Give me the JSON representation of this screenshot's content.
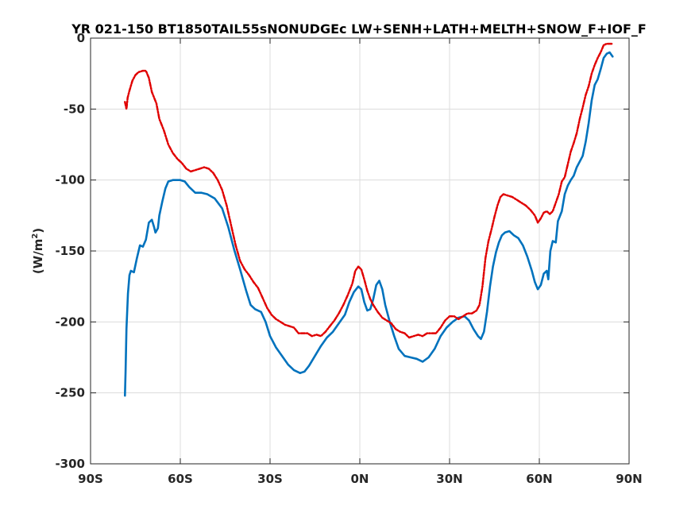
{
  "chart_data": {
    "type": "line",
    "title": "YR 021-150 BT1850TAIL55sNONUDGEc LW+SENH+LATH+MELTH+SNOW_F+IOF_F",
    "xlabel": "",
    "ylabel": "(W/m",
    "ylabel_sup": "2",
    "ylabel_close": ")",
    "xlim": [
      -90,
      90
    ],
    "ylim": [
      -300,
      0
    ],
    "grid": true,
    "xticks": [
      -90,
      -60,
      -30,
      0,
      30,
      60,
      90
    ],
    "xtick_labels": [
      "90S",
      "60S",
      "30S",
      "0N",
      "30N",
      "60N",
      "90N"
    ],
    "yticks": [
      0,
      -50,
      -100,
      -150,
      -200,
      -250,
      -300
    ],
    "ytick_labels": [
      "0",
      "-50",
      "-100",
      "-150",
      "-200",
      "-250",
      "-300"
    ],
    "series": [
      {
        "color": "#0072BD",
        "style": "solid",
        "points": [
          [
            -78.5,
            -252
          ],
          [
            -78.3,
            -235
          ],
          [
            -78.0,
            -205
          ],
          [
            -77.5,
            -180
          ],
          [
            -77.0,
            -167
          ],
          [
            -76.5,
            -164
          ],
          [
            -75.5,
            -165
          ],
          [
            -74.5,
            -155
          ],
          [
            -73.5,
            -146
          ],
          [
            -72.5,
            -147
          ],
          [
            -71.5,
            -142
          ],
          [
            -70.5,
            -130
          ],
          [
            -69.5,
            -128
          ],
          [
            -68.8,
            -133
          ],
          [
            -68.3,
            -137
          ],
          [
            -67.5,
            -134
          ],
          [
            -67.0,
            -125
          ],
          [
            -66.0,
            -115
          ],
          [
            -65.0,
            -106
          ],
          [
            -64.0,
            -101
          ],
          [
            -62.5,
            -100
          ],
          [
            -60.0,
            -100
          ],
          [
            -58.5,
            -101
          ],
          [
            -57.0,
            -105
          ],
          [
            -55.0,
            -109
          ],
          [
            -53.0,
            -109
          ],
          [
            -51.0,
            -110
          ],
          [
            -48.5,
            -113
          ],
          [
            -46.0,
            -120
          ],
          [
            -44.0,
            -133
          ],
          [
            -42.0,
            -149
          ],
          [
            -40.0,
            -163
          ],
          [
            -38.0,
            -178
          ],
          [
            -36.5,
            -188
          ],
          [
            -35.0,
            -191
          ],
          [
            -33.0,
            -193
          ],
          [
            -31.5,
            -200
          ],
          [
            -30.0,
            -210
          ],
          [
            -28.0,
            -218
          ],
          [
            -26.0,
            -224
          ],
          [
            -24.0,
            -230
          ],
          [
            -22.0,
            -234
          ],
          [
            -20.0,
            -236
          ],
          [
            -18.5,
            -235
          ],
          [
            -17.0,
            -231
          ],
          [
            -15.0,
            -224
          ],
          [
            -13.0,
            -217
          ],
          [
            -11.0,
            -211
          ],
          [
            -9.0,
            -207
          ],
          [
            -7.0,
            -201
          ],
          [
            -5.0,
            -195
          ],
          [
            -3.5,
            -186
          ],
          [
            -2.0,
            -179
          ],
          [
            -0.5,
            -175
          ],
          [
            0.5,
            -177
          ],
          [
            1.5,
            -186
          ],
          [
            2.5,
            -192
          ],
          [
            3.5,
            -191
          ],
          [
            4.5,
            -184
          ],
          [
            5.5,
            -174
          ],
          [
            6.5,
            -171
          ],
          [
            7.5,
            -177
          ],
          [
            8.5,
            -188
          ],
          [
            10.0,
            -200
          ],
          [
            11.5,
            -210
          ],
          [
            13.0,
            -219
          ],
          [
            15.0,
            -224
          ],
          [
            17.0,
            -225
          ],
          [
            19.0,
            -226
          ],
          [
            21.0,
            -228
          ],
          [
            23.0,
            -225
          ],
          [
            25.0,
            -219
          ],
          [
            27.0,
            -210
          ],
          [
            29.0,
            -204
          ],
          [
            31.0,
            -200
          ],
          [
            33.0,
            -197
          ],
          [
            35.0,
            -196
          ],
          [
            36.5,
            -199
          ],
          [
            38.0,
            -205
          ],
          [
            39.5,
            -210
          ],
          [
            40.5,
            -212
          ],
          [
            41.5,
            -207
          ],
          [
            42.5,
            -193
          ],
          [
            43.5,
            -175
          ],
          [
            44.5,
            -161
          ],
          [
            45.5,
            -151
          ],
          [
            46.5,
            -144
          ],
          [
            47.5,
            -139
          ],
          [
            48.5,
            -137
          ],
          [
            50.0,
            -136
          ],
          [
            51.5,
            -139
          ],
          [
            53.0,
            -141
          ],
          [
            54.5,
            -146
          ],
          [
            56.0,
            -154
          ],
          [
            57.5,
            -164
          ],
          [
            58.5,
            -172
          ],
          [
            59.5,
            -177
          ],
          [
            60.5,
            -174
          ],
          [
            61.5,
            -166
          ],
          [
            62.5,
            -164
          ],
          [
            63.0,
            -170
          ],
          [
            63.7,
            -150
          ],
          [
            64.5,
            -143
          ],
          [
            65.5,
            -144
          ],
          [
            66.2,
            -129
          ],
          [
            67.5,
            -122
          ],
          [
            68.5,
            -110
          ],
          [
            69.5,
            -104
          ],
          [
            70.5,
            -100
          ],
          [
            71.5,
            -97
          ],
          [
            72.5,
            -91
          ],
          [
            73.5,
            -87
          ],
          [
            74.5,
            -83
          ],
          [
            75.5,
            -73
          ],
          [
            76.5,
            -60
          ],
          [
            77.5,
            -44
          ],
          [
            78.5,
            -33
          ],
          [
            79.5,
            -29
          ],
          [
            80.5,
            -22
          ],
          [
            81.5,
            -14
          ],
          [
            82.5,
            -11
          ],
          [
            83.5,
            -10
          ],
          [
            84.5,
            -13
          ]
        ]
      },
      {
        "color": "#E00000",
        "style": "dashdot",
        "points": [
          [
            -78.5,
            -45
          ],
          [
            -78.0,
            -50
          ],
          [
            -77.6,
            -42
          ],
          [
            -77.0,
            -37
          ],
          [
            -76.0,
            -30
          ],
          [
            -75.0,
            -26
          ],
          [
            -74.0,
            -24
          ],
          [
            -72.5,
            -23
          ],
          [
            -71.5,
            -23
          ],
          [
            -70.5,
            -28
          ],
          [
            -69.5,
            -38
          ],
          [
            -68.0,
            -46
          ],
          [
            -67.0,
            -57
          ],
          [
            -65.5,
            -65
          ],
          [
            -64.0,
            -75
          ],
          [
            -62.5,
            -81
          ],
          [
            -61.0,
            -85
          ],
          [
            -59.5,
            -88
          ],
          [
            -58.0,
            -92
          ],
          [
            -56.5,
            -94
          ],
          [
            -55.0,
            -93
          ],
          [
            -53.5,
            -92
          ],
          [
            -52.0,
            -91
          ],
          [
            -50.5,
            -92
          ],
          [
            -49.0,
            -95
          ],
          [
            -47.5,
            -100
          ],
          [
            -46.0,
            -107
          ],
          [
            -44.5,
            -118
          ],
          [
            -43.0,
            -132
          ],
          [
            -41.5,
            -146
          ],
          [
            -40.0,
            -157
          ],
          [
            -38.5,
            -163
          ],
          [
            -37.0,
            -167
          ],
          [
            -35.5,
            -172
          ],
          [
            -34.0,
            -176
          ],
          [
            -32.5,
            -183
          ],
          [
            -31.0,
            -190
          ],
          [
            -29.5,
            -195
          ],
          [
            -28.0,
            -198
          ],
          [
            -26.5,
            -200
          ],
          [
            -25.0,
            -202
          ],
          [
            -23.5,
            -203
          ],
          [
            -22.0,
            -204
          ],
          [
            -20.5,
            -208
          ],
          [
            -19.0,
            -208
          ],
          [
            -17.5,
            -208
          ],
          [
            -16.0,
            -210
          ],
          [
            -14.5,
            -209
          ],
          [
            -13.0,
            -210
          ],
          [
            -11.5,
            -207
          ],
          [
            -10.0,
            -203
          ],
          [
            -8.5,
            -199
          ],
          [
            -7.0,
            -194
          ],
          [
            -5.5,
            -188
          ],
          [
            -4.0,
            -181
          ],
          [
            -2.5,
            -173
          ],
          [
            -1.5,
            -164
          ],
          [
            -0.5,
            -161
          ],
          [
            0.5,
            -163
          ],
          [
            1.5,
            -170
          ],
          [
            2.5,
            -178
          ],
          [
            3.5,
            -184
          ],
          [
            4.5,
            -188
          ],
          [
            6.0,
            -193
          ],
          [
            7.5,
            -197
          ],
          [
            9.0,
            -199
          ],
          [
            10.5,
            -201
          ],
          [
            12.0,
            -205
          ],
          [
            13.5,
            -207
          ],
          [
            15.0,
            -208
          ],
          [
            16.5,
            -211
          ],
          [
            18.0,
            -210
          ],
          [
            19.5,
            -209
          ],
          [
            21.0,
            -210
          ],
          [
            22.5,
            -208
          ],
          [
            24.0,
            -208
          ],
          [
            25.5,
            -208
          ],
          [
            27.0,
            -204
          ],
          [
            28.5,
            -199
          ],
          [
            30.0,
            -196
          ],
          [
            31.5,
            -196
          ],
          [
            33.0,
            -198
          ],
          [
            34.5,
            -196
          ],
          [
            36.0,
            -194
          ],
          [
            37.5,
            -194
          ],
          [
            39.0,
            -192
          ],
          [
            40.0,
            -188
          ],
          [
            41.0,
            -175
          ],
          [
            42.0,
            -155
          ],
          [
            43.0,
            -143
          ],
          [
            44.0,
            -135
          ],
          [
            45.0,
            -126
          ],
          [
            46.0,
            -118
          ],
          [
            47.0,
            -112
          ],
          [
            48.0,
            -110
          ],
          [
            49.5,
            -111
          ],
          [
            51.0,
            -112
          ],
          [
            52.5,
            -114
          ],
          [
            54.0,
            -116
          ],
          [
            55.5,
            -118
          ],
          [
            57.0,
            -121
          ],
          [
            58.5,
            -125
          ],
          [
            59.5,
            -130
          ],
          [
            60.5,
            -127
          ],
          [
            61.5,
            -123
          ],
          [
            62.5,
            -122
          ],
          [
            63.5,
            -124
          ],
          [
            64.5,
            -122
          ],
          [
            65.5,
            -116
          ],
          [
            66.5,
            -110
          ],
          [
            67.5,
            -101
          ],
          [
            68.5,
            -98
          ],
          [
            69.5,
            -89
          ],
          [
            70.5,
            -80
          ],
          [
            71.5,
            -74
          ],
          [
            72.5,
            -67
          ],
          [
            73.5,
            -57
          ],
          [
            74.5,
            -49
          ],
          [
            75.5,
            -40
          ],
          [
            76.5,
            -34
          ],
          [
            77.5,
            -25
          ],
          [
            78.5,
            -19
          ],
          [
            79.5,
            -14
          ],
          [
            80.5,
            -10
          ],
          [
            81.5,
            -5
          ],
          [
            82.5,
            -4
          ],
          [
            83.5,
            -4
          ],
          [
            84.5,
            -4
          ]
        ]
      }
    ]
  }
}
